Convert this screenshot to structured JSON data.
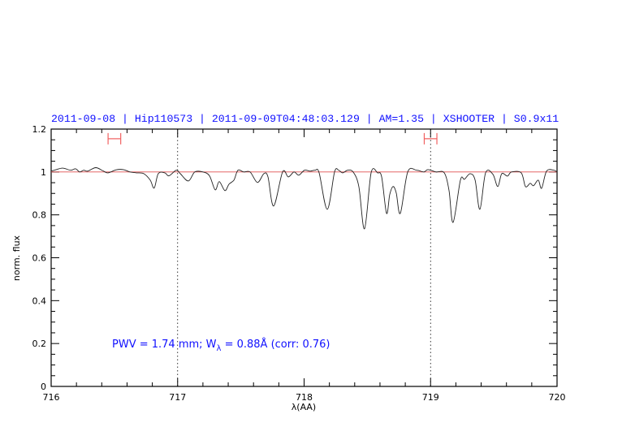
{
  "chart_data": {
    "type": "line",
    "title": "2011-09-08 | Hip110573 | 2011-09-09T04:48:03.129 | AM=1.35 | XSHOOTER | S0.9x11",
    "xlabel": "λ(AA)",
    "ylabel": "norm. flux",
    "xlim": [
      716,
      720
    ],
    "ylim": [
      0,
      1.2
    ],
    "x_ticks": [
      716,
      717,
      718,
      719,
      720
    ],
    "x_tick_labels": [
      "716",
      "717",
      "718",
      "719",
      "720"
    ],
    "y_ticks": [
      0,
      0.2,
      0.4,
      0.6,
      0.8,
      1,
      1.2
    ],
    "y_tick_labels": [
      "0",
      "0.2",
      "0.4",
      "0.6",
      "0.8",
      "1",
      "1.2"
    ],
    "x_minor_step": 0.2,
    "y_minor_step": 0.05,
    "grid": false,
    "reference_line": {
      "y": 1.0,
      "color": "#e05050"
    },
    "vertical_dotted_lines": [
      717,
      719
    ],
    "range_markers": [
      {
        "x1": 716.45,
        "x2": 716.55,
        "y": 1.155,
        "color": "#f06060"
      },
      {
        "x1": 718.95,
        "x2": 719.05,
        "y": 1.155,
        "color": "#f06060"
      }
    ],
    "annotation": {
      "prefix": "PWV = 1.74 mm; W",
      "subscript": "λ",
      "suffix": " = 0.88Å (corr: 0.76)"
    },
    "colors": {
      "spectrum": "#000000",
      "text": "#1010ff"
    },
    "series": [
      {
        "x": [
          716.0,
          716.026,
          716.09,
          716.154,
          716.193,
          716.225,
          716.257,
          716.289,
          716.353,
          716.411,
          716.449,
          716.514,
          716.571,
          716.623,
          716.674,
          716.732,
          716.783,
          716.815,
          716.847,
          716.899,
          716.931,
          716.989,
          717.021,
          717.085,
          717.136,
          717.2,
          717.252,
          717.297,
          717.329,
          717.374,
          717.406,
          717.445,
          717.477,
          717.522,
          717.573,
          717.631,
          717.682,
          717.714,
          717.759,
          717.83,
          717.875,
          717.92,
          717.958,
          718.003,
          718.048,
          718.087,
          718.119,
          718.183,
          718.241,
          718.273,
          718.305,
          718.344,
          718.388,
          718.433,
          718.478,
          718.53,
          718.581,
          718.613,
          718.652,
          718.677,
          718.703,
          718.729,
          718.761,
          718.819,
          718.889,
          718.947,
          718.979,
          719.043,
          719.108,
          719.146,
          719.178,
          719.236,
          719.268,
          719.313,
          719.352,
          719.39,
          719.435,
          719.493,
          719.531,
          719.563,
          719.608,
          719.64,
          719.717,
          719.75,
          719.788,
          719.814,
          719.852,
          719.878,
          719.917,
          719.974,
          720.0
        ],
        "y": [
          1.004,
          1.008,
          1.018,
          1.008,
          1.015,
          1.0,
          1.008,
          1.004,
          1.02,
          1.005,
          0.996,
          1.01,
          1.011,
          1.0,
          0.996,
          0.992,
          0.962,
          0.925,
          0.992,
          0.996,
          0.982,
          1.008,
          0.992,
          0.958,
          1.0,
          1.0,
          0.982,
          0.917,
          0.955,
          0.913,
          0.943,
          0.962,
          1.008,
          1.0,
          1.0,
          0.951,
          0.992,
          0.977,
          0.841,
          1.0,
          0.977,
          1.0,
          0.985,
          1.008,
          1.004,
          1.008,
          0.996,
          0.826,
          1.0,
          1.008,
          0.996,
          1.008,
          1.0,
          0.932,
          0.735,
          0.996,
          0.996,
          0.977,
          0.807,
          0.894,
          0.932,
          0.902,
          0.807,
          1.0,
          1.008,
          1.0,
          1.011,
          1.0,
          0.996,
          0.913,
          0.765,
          0.962,
          0.966,
          0.992,
          0.962,
          0.826,
          0.996,
          0.989,
          0.932,
          0.992,
          0.981,
          1.0,
          0.996,
          0.932,
          0.947,
          0.936,
          0.962,
          0.924,
          1.004,
          1.008,
          1.0
        ]
      }
    ]
  }
}
